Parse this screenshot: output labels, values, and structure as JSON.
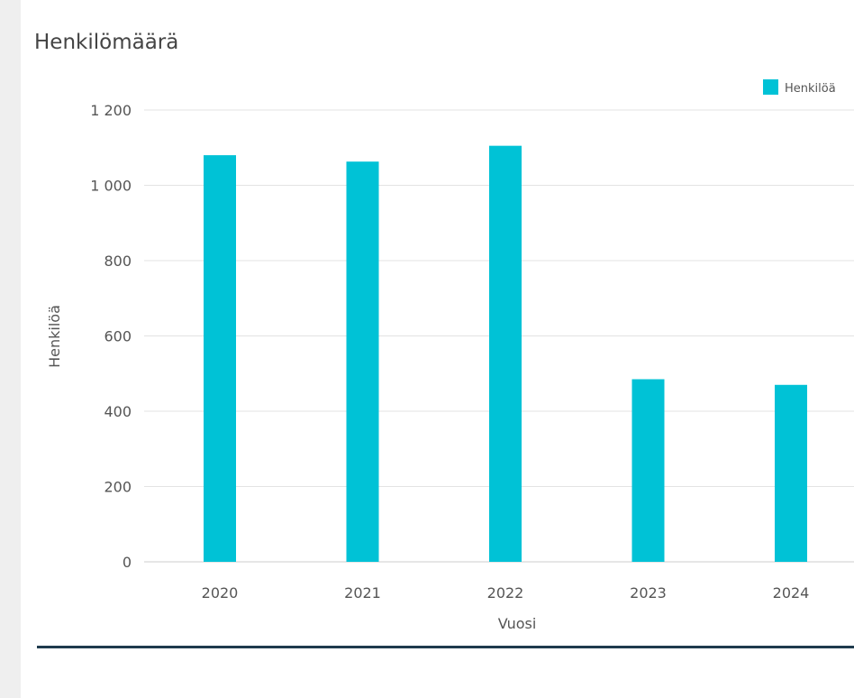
{
  "colors": {
    "bar": "#00c2d6",
    "grid": "#e3e3e3",
    "axis_text": "#555555",
    "rule": "#1f3b4d"
  },
  "chart_data": {
    "type": "bar",
    "title": "Henkilömäärä",
    "xlabel": "Vuosi",
    "ylabel": "Henkilöä",
    "categories": [
      "2020",
      "2021",
      "2022",
      "2023",
      "2024"
    ],
    "series": [
      {
        "name": "Henkilöä",
        "values": [
          1080,
          1063,
          1105,
          485,
          470
        ]
      }
    ],
    "ylim": [
      0,
      1200
    ],
    "yticks": [
      0,
      200,
      400,
      600,
      800,
      1000,
      1200
    ],
    "ytick_labels": [
      "0",
      "200",
      "400",
      "600",
      "800",
      "1 000",
      "1 200"
    ],
    "grid": true,
    "legend_position": "top-right"
  }
}
